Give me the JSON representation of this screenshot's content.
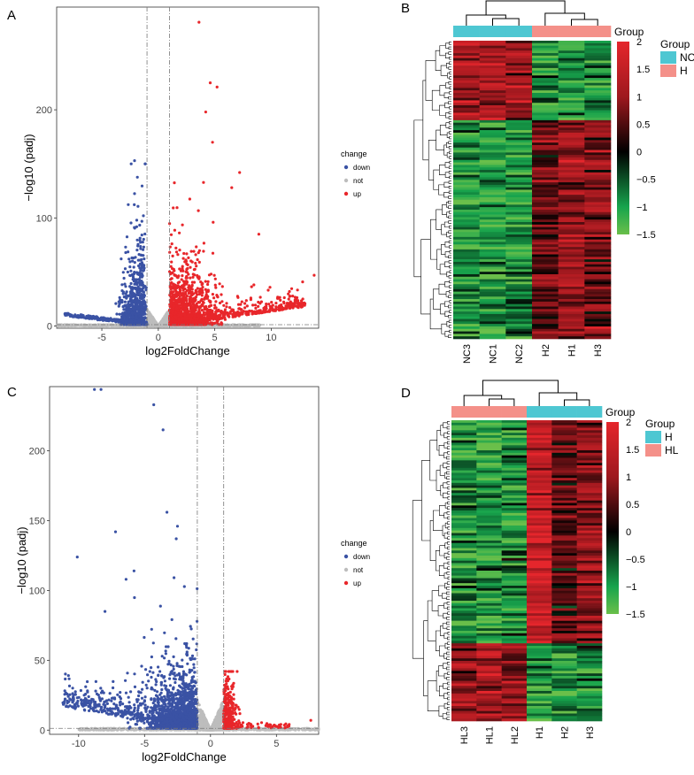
{
  "figure": {
    "panel_labels": [
      "A",
      "B",
      "C",
      "D"
    ]
  },
  "chart_data": [
    {
      "panel": "A",
      "type": "scatter",
      "subtype": "volcano",
      "xlabel": "log2FoldChange",
      "ylabel": "−log10 (padj)",
      "xlim": [
        -9,
        14.2
      ],
      "ylim": [
        -2,
        295
      ],
      "xticks": [
        -5,
        0,
        5,
        10
      ],
      "yticks": [
        0,
        100,
        200
      ],
      "thresholds": {
        "x": [
          -1,
          1
        ],
        "y": 1.3
      },
      "legend": {
        "title": "change",
        "labels": [
          "down",
          "not",
          "up"
        ],
        "colors": [
          "#3a52a4",
          "#bdbdbd",
          "#e8262a"
        ]
      },
      "counts": {
        "down": 900,
        "not": 2000,
        "up": 1500
      },
      "highlights": [
        {
          "x": 3.6,
          "y": 281,
          "group": "up"
        },
        {
          "x": 4.6,
          "y": 225,
          "group": "up"
        },
        {
          "x": 5.2,
          "y": 221,
          "group": "up"
        },
        {
          "x": 4.2,
          "y": 198,
          "group": "up"
        },
        {
          "x": 4.8,
          "y": 170,
          "group": "up"
        },
        {
          "x": 7.2,
          "y": 142,
          "group": "up"
        },
        {
          "x": 6.5,
          "y": 128,
          "group": "up"
        },
        {
          "x": 8.9,
          "y": 85,
          "group": "up"
        },
        {
          "x": 13.8,
          "y": 47,
          "group": "up"
        },
        {
          "x": 12.8,
          "y": 25,
          "group": "up"
        },
        {
          "x": -2.1,
          "y": 153,
          "group": "down"
        },
        {
          "x": -2.4,
          "y": 150,
          "group": "down"
        },
        {
          "x": -8.2,
          "y": 10,
          "group": "down"
        }
      ]
    },
    {
      "panel": "B",
      "type": "heatmap",
      "columns": [
        "NC3",
        "NC1",
        "NC2",
        "H2",
        "H1",
        "H3"
      ],
      "groups": [
        "NC",
        "NC",
        "NC",
        "H",
        "H",
        "H"
      ],
      "annotation_title": "Group",
      "annotation_legend": [
        {
          "label": "NC",
          "color": "#4ec7d2"
        },
        {
          "label": "H",
          "color": "#f49089"
        }
      ],
      "colorbar": {
        "min": -1.5,
        "max": 2,
        "ticks": [
          "2",
          "1.5",
          "1",
          "0.5",
          "0",
          "−0.5",
          "−1",
          "−1.5"
        ]
      },
      "row_blocks": [
        {
          "fraction": 0.27,
          "means": [
            1.1,
            1.2,
            1.1,
            -1.0,
            -1.0,
            -0.9
          ]
        },
        {
          "fraction": 0.73,
          "means": [
            -0.9,
            -1.0,
            -0.9,
            0.6,
            1.0,
            0.8
          ]
        }
      ]
    },
    {
      "panel": "C",
      "type": "scatter",
      "subtype": "volcano",
      "xlabel": "log2FoldChange",
      "ylabel": "−log10 (padj)",
      "xlim": [
        -12.2,
        8.2
      ],
      "ylim": [
        -3,
        246
      ],
      "xticks": [
        -10,
        -5,
        0,
        5
      ],
      "yticks": [
        0,
        50,
        100,
        150,
        200
      ],
      "thresholds": {
        "x": [
          -1,
          1
        ],
        "y": 1.3
      },
      "legend": {
        "title": "change",
        "labels": [
          "down",
          "not",
          "up"
        ],
        "colors": [
          "#3a52a4",
          "#bdbdbd",
          "#e8262a"
        ]
      },
      "counts": {
        "down": 1700,
        "not": 2000,
        "up": 350
      },
      "highlights": [
        {
          "x": -4.3,
          "y": 233,
          "group": "down"
        },
        {
          "x": -3.6,
          "y": 215,
          "group": "down"
        },
        {
          "x": -3.3,
          "y": 156,
          "group": "down"
        },
        {
          "x": -2.5,
          "y": 146,
          "group": "down"
        },
        {
          "x": -7.2,
          "y": 142,
          "group": "down"
        },
        {
          "x": -2.6,
          "y": 137,
          "group": "down"
        },
        {
          "x": -10.1,
          "y": 124,
          "group": "down"
        },
        {
          "x": -5.8,
          "y": 114,
          "group": "down"
        },
        {
          "x": -6.4,
          "y": 108,
          "group": "down"
        },
        {
          "x": -8.0,
          "y": 85,
          "group": "down"
        },
        {
          "x": -8.8,
          "y": 244,
          "group": "down"
        },
        {
          "x": -8.3,
          "y": 244,
          "group": "down"
        },
        {
          "x": -11.1,
          "y": 19,
          "group": "down"
        },
        {
          "x": 7.6,
          "y": 7,
          "group": "up"
        }
      ]
    },
    {
      "panel": "D",
      "type": "heatmap",
      "columns": [
        "HL3",
        "HL1",
        "HL2",
        "H1",
        "H2",
        "H3"
      ],
      "groups": [
        "HL",
        "HL",
        "HL",
        "H",
        "H",
        "H"
      ],
      "annotation_title": "Group",
      "annotation_legend": [
        {
          "label": "H",
          "color": "#4ec7d2"
        },
        {
          "label": "HL",
          "color": "#f49089"
        }
      ],
      "colorbar": {
        "min": -1.5,
        "max": 2,
        "ticks": [
          "2",
          "1.5",
          "1",
          "0.5",
          "0",
          "−0.5",
          "−1",
          "−1.5"
        ]
      },
      "row_blocks": [
        {
          "fraction": 0.74,
          "means": [
            -0.9,
            -1.0,
            -0.9,
            1.6,
            0.5,
            0.8
          ]
        },
        {
          "fraction": 0.26,
          "means": [
            0.9,
            1.1,
            1.0,
            -0.9,
            -1.0,
            -0.8
          ]
        }
      ]
    }
  ]
}
